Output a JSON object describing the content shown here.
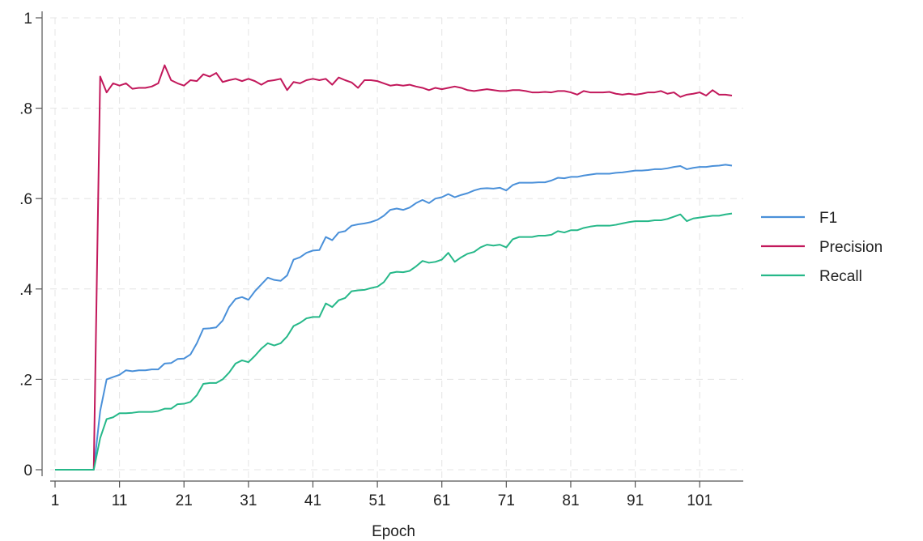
{
  "chart_data": {
    "type": "line",
    "title": "",
    "xlabel": "Epoch",
    "ylabel": "",
    "xlim": [
      1,
      106
    ],
    "ylim": [
      0,
      1
    ],
    "x_ticks": [
      1,
      11,
      21,
      31,
      41,
      51,
      61,
      71,
      81,
      91,
      101
    ],
    "y_ticks": [
      0,
      0.2,
      0.4,
      0.6,
      0.8,
      1
    ],
    "y_tick_labels": [
      "0",
      ".2",
      ".4",
      ".6",
      ".8",
      "1"
    ],
    "grid": true,
    "legend_position": "right",
    "x": [
      1,
      2,
      3,
      4,
      5,
      6,
      7,
      8,
      9,
      10,
      11,
      12,
      13,
      14,
      15,
      16,
      17,
      18,
      19,
      20,
      21,
      22,
      23,
      24,
      25,
      26,
      27,
      28,
      29,
      30,
      31,
      32,
      33,
      34,
      35,
      36,
      37,
      38,
      39,
      40,
      41,
      42,
      43,
      44,
      45,
      46,
      47,
      48,
      49,
      50,
      51,
      52,
      53,
      54,
      55,
      56,
      57,
      58,
      59,
      60,
      61,
      62,
      63,
      64,
      65,
      66,
      67,
      68,
      69,
      70,
      71,
      72,
      73,
      74,
      75,
      76,
      77,
      78,
      79,
      80,
      81,
      82,
      83,
      84,
      85,
      86,
      87,
      88,
      89,
      90,
      91,
      92,
      93,
      94,
      95,
      96,
      97,
      98,
      99,
      100,
      101,
      102,
      103,
      104,
      105,
      106
    ],
    "series": [
      {
        "name": "F1",
        "color": "#4a90d9",
        "values": [
          0,
          0,
          0,
          0,
          0,
          0,
          0,
          0.13,
          0.2,
          0.205,
          0.21,
          0.22,
          0.218,
          0.22,
          0.22,
          0.222,
          0.222,
          0.235,
          0.236,
          0.245,
          0.246,
          0.255,
          0.28,
          0.312,
          0.313,
          0.315,
          0.33,
          0.36,
          0.378,
          0.382,
          0.376,
          0.395,
          0.41,
          0.425,
          0.42,
          0.418,
          0.43,
          0.465,
          0.47,
          0.48,
          0.485,
          0.486,
          0.515,
          0.508,
          0.525,
          0.528,
          0.54,
          0.543,
          0.545,
          0.548,
          0.553,
          0.562,
          0.575,
          0.578,
          0.575,
          0.58,
          0.59,
          0.597,
          0.59,
          0.6,
          0.603,
          0.61,
          0.603,
          0.608,
          0.612,
          0.618,
          0.622,
          0.623,
          0.622,
          0.624,
          0.618,
          0.63,
          0.635,
          0.635,
          0.635,
          0.636,
          0.636,
          0.64,
          0.646,
          0.645,
          0.648,
          0.648,
          0.651,
          0.653,
          0.655,
          0.655,
          0.655,
          0.657,
          0.658,
          0.66,
          0.662,
          0.662,
          0.663,
          0.665,
          0.665,
          0.667,
          0.67,
          0.672,
          0.665,
          0.668,
          0.67,
          0.67,
          0.672,
          0.673,
          0.675,
          0.673
        ]
      },
      {
        "name": "Precision",
        "color": "#c2185b",
        "values": [
          0,
          0,
          0,
          0,
          0,
          0,
          0,
          0.87,
          0.835,
          0.855,
          0.85,
          0.855,
          0.843,
          0.845,
          0.845,
          0.848,
          0.855,
          0.895,
          0.862,
          0.855,
          0.85,
          0.862,
          0.86,
          0.875,
          0.87,
          0.878,
          0.858,
          0.862,
          0.865,
          0.86,
          0.865,
          0.86,
          0.852,
          0.86,
          0.862,
          0.865,
          0.84,
          0.858,
          0.855,
          0.862,
          0.865,
          0.862,
          0.865,
          0.852,
          0.868,
          0.862,
          0.857,
          0.845,
          0.862,
          0.862,
          0.86,
          0.855,
          0.85,
          0.852,
          0.85,
          0.852,
          0.848,
          0.845,
          0.84,
          0.845,
          0.842,
          0.845,
          0.848,
          0.845,
          0.84,
          0.838,
          0.84,
          0.842,
          0.84,
          0.838,
          0.838,
          0.84,
          0.84,
          0.838,
          0.835,
          0.835,
          0.836,
          0.835,
          0.838,
          0.838,
          0.835,
          0.83,
          0.838,
          0.835,
          0.835,
          0.835,
          0.836,
          0.832,
          0.83,
          0.832,
          0.83,
          0.832,
          0.835,
          0.835,
          0.838,
          0.832,
          0.835,
          0.825,
          0.83,
          0.832,
          0.835,
          0.828,
          0.84,
          0.83,
          0.83,
          0.828
        ]
      },
      {
        "name": "Recall",
        "color": "#26b889",
        "values": [
          0,
          0,
          0,
          0,
          0,
          0,
          0,
          0.07,
          0.112,
          0.116,
          0.125,
          0.125,
          0.126,
          0.128,
          0.128,
          0.128,
          0.13,
          0.135,
          0.135,
          0.145,
          0.146,
          0.15,
          0.165,
          0.19,
          0.192,
          0.192,
          0.2,
          0.215,
          0.235,
          0.242,
          0.238,
          0.252,
          0.268,
          0.28,
          0.275,
          0.28,
          0.295,
          0.318,
          0.325,
          0.335,
          0.338,
          0.338,
          0.368,
          0.36,
          0.375,
          0.38,
          0.395,
          0.397,
          0.398,
          0.402,
          0.405,
          0.415,
          0.435,
          0.438,
          0.437,
          0.44,
          0.45,
          0.462,
          0.458,
          0.46,
          0.465,
          0.48,
          0.46,
          0.47,
          0.478,
          0.482,
          0.492,
          0.498,
          0.496,
          0.498,
          0.492,
          0.51,
          0.515,
          0.515,
          0.515,
          0.518,
          0.518,
          0.52,
          0.528,
          0.525,
          0.53,
          0.53,
          0.535,
          0.538,
          0.54,
          0.54,
          0.54,
          0.542,
          0.545,
          0.548,
          0.55,
          0.55,
          0.55,
          0.552,
          0.552,
          0.555,
          0.56,
          0.565,
          0.55,
          0.556,
          0.558,
          0.56,
          0.562,
          0.562,
          0.565,
          0.567
        ]
      }
    ]
  }
}
